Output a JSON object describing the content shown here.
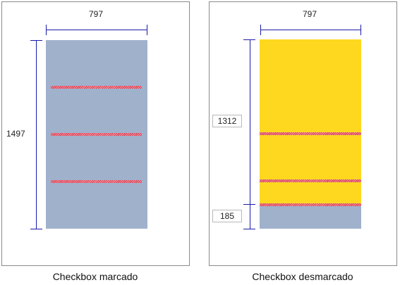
{
  "left": {
    "width_label": "797",
    "height_label": "1497",
    "caption": "Checkbox marcado",
    "fill_color": "#a0b1cc"
  },
  "right": {
    "width_label": "797",
    "top_height_value": "1312",
    "bottom_height_value": "185",
    "caption": "Checkbox desmarcado",
    "top_fill_color": "#fdd81f",
    "bottom_fill_color": "#a0b1cc"
  },
  "colors": {
    "dimension_line": "#1a1aa8",
    "hatch": "#d8334a",
    "panel_border": "#8a8a8a"
  }
}
